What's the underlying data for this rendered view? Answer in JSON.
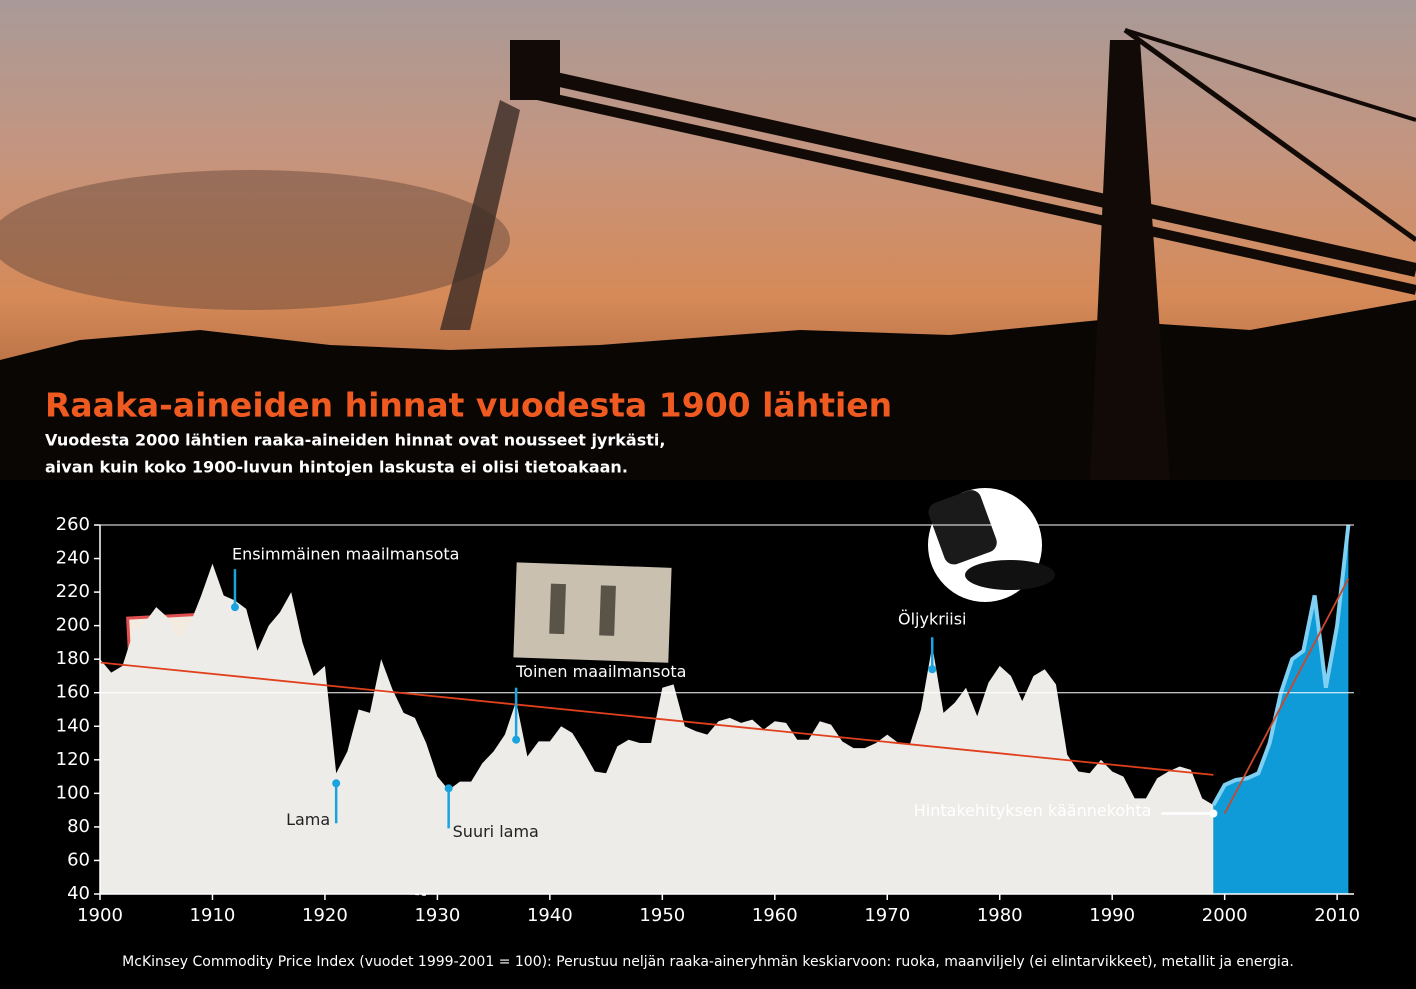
{
  "chart_data": {
    "type": "area",
    "title": "Raaka-aineiden hinnat vuodesta 1900 lähtien",
    "subtitle": [
      "Vuodesta 2000 lähtien raaka-aineiden hinnat ovat nousseet jyrkästi,",
      "aivan  kuin koko 1900-luvun hintojen laskusta ei olisi tietoakaan."
    ],
    "source": "McKinsey Commodity Price Index (vuodet 1999-2001 = 100): Perustuu neljän raaka-aineryhmän keskiarvoon: ruoka, maanviljely (ei elintarvikkeet), metallit ja energia.",
    "x": [
      1900,
      1901,
      1902,
      1903,
      1904,
      1905,
      1906,
      1907,
      1908,
      1909,
      1910,
      1911,
      1912,
      1913,
      1914,
      1915,
      1916,
      1917,
      1918,
      1919,
      1920,
      1921,
      1922,
      1923,
      1924,
      1925,
      1926,
      1927,
      1928,
      1929,
      1930,
      1931,
      1932,
      1933,
      1934,
      1935,
      1936,
      1937,
      1938,
      1939,
      1940,
      1941,
      1942,
      1943,
      1944,
      1945,
      1946,
      1947,
      1948,
      1949,
      1950,
      1951,
      1952,
      1953,
      1954,
      1955,
      1956,
      1957,
      1958,
      1959,
      1960,
      1961,
      1962,
      1963,
      1964,
      1965,
      1966,
      1967,
      1968,
      1969,
      1970,
      1971,
      1972,
      1973,
      1974,
      1975,
      1976,
      1977,
      1978,
      1979,
      1980,
      1981,
      1982,
      1983,
      1984,
      1985,
      1986,
      1987,
      1988,
      1989,
      1990,
      1991,
      1992,
      1993,
      1994,
      1995,
      1996,
      1997,
      1998,
      1999,
      2000,
      2001,
      2002,
      2003,
      2004,
      2005,
      2006,
      2007,
      2008,
      2009,
      2010,
      2011
    ],
    "series": [
      {
        "color": "#edece9",
        "values": [
          180,
          172,
          176,
          197,
          202,
          211,
          205,
          192,
          201,
          218,
          237,
          218,
          215,
          210,
          185,
          200,
          208,
          220,
          190,
          170,
          176,
          112,
          125,
          150,
          148,
          180,
          162,
          148,
          145,
          130,
          110,
          102,
          107,
          107,
          118,
          125,
          135,
          155,
          122,
          131,
          131,
          140,
          136,
          125,
          113,
          112,
          128,
          132,
          130,
          130,
          163,
          165,
          140,
          137,
          135,
          143,
          145,
          142,
          144,
          138,
          143,
          142,
          132,
          132,
          143,
          141,
          131,
          127,
          127,
          130,
          135,
          130,
          129,
          150,
          188,
          148,
          154,
          163,
          146,
          166,
          176,
          170,
          155,
          170,
          174,
          165,
          123,
          113,
          112,
          120,
          113,
          110,
          97,
          97,
          109,
          113,
          116,
          114,
          97,
          93,
          null,
          null,
          null,
          null,
          null,
          null,
          null,
          null,
          null,
          null,
          null,
          null
        ]
      },
      {
        "color": "#0e9bd8",
        "values": [
          null,
          null,
          null,
          null,
          null,
          null,
          null,
          null,
          null,
          null,
          null,
          null,
          null,
          null,
          null,
          null,
          null,
          null,
          null,
          null,
          null,
          null,
          null,
          null,
          null,
          null,
          null,
          null,
          null,
          null,
          null,
          null,
          null,
          null,
          null,
          null,
          null,
          null,
          null,
          null,
          null,
          null,
          null,
          null,
          null,
          null,
          null,
          null,
          null,
          null,
          null,
          null,
          null,
          null,
          null,
          null,
          null,
          null,
          null,
          null,
          null,
          null,
          null,
          null,
          null,
          null,
          null,
          null,
          null,
          null,
          null,
          null,
          null,
          null,
          null,
          null,
          null,
          null,
          null,
          null,
          null,
          null,
          null,
          null,
          null,
          null,
          null,
          null,
          null,
          null,
          null,
          null,
          null,
          null,
          null,
          null,
          null,
          null,
          null,
          93,
          105,
          108,
          109,
          112,
          130,
          160,
          180,
          185,
          218,
          163,
          200,
          260
        ]
      }
    ],
    "trendlines": [
      {
        "color": "#e0401c",
        "x": [
          1900,
          1999
        ],
        "values": [
          178,
          111
        ]
      },
      {
        "color": "#c9472a",
        "x": [
          2000,
          2011
        ],
        "values": [
          88,
          228
        ]
      }
    ],
    "annotations": [
      {
        "text": "Ensimmäinen maailmansota",
        "x": 1912,
        "y": 211
      },
      {
        "text": "Lama",
        "x": 1921,
        "y": 106
      },
      {
        "text": "Suuri lama",
        "x": 1931,
        "y": 103
      },
      {
        "text": "Toinen maailmansota",
        "x": 1937,
        "y": 132
      },
      {
        "text": "Öljykriisi",
        "x": 1974,
        "y": 174
      },
      {
        "text": "Hintakehityksen käännekohta",
        "x": 1999,
        "y": 88
      }
    ],
    "xlim": [
      1900,
      2011.5
    ],
    "ylim": [
      40,
      260
    ],
    "xticks": [
      1900,
      1910,
      1920,
      1930,
      1940,
      1950,
      1960,
      1970,
      1980,
      1990,
      2000,
      2010
    ],
    "yticks": [
      40,
      60,
      80,
      100,
      120,
      140,
      160,
      180,
      200,
      220,
      240,
      260
    ],
    "grid_at": [
      160,
      260
    ]
  }
}
